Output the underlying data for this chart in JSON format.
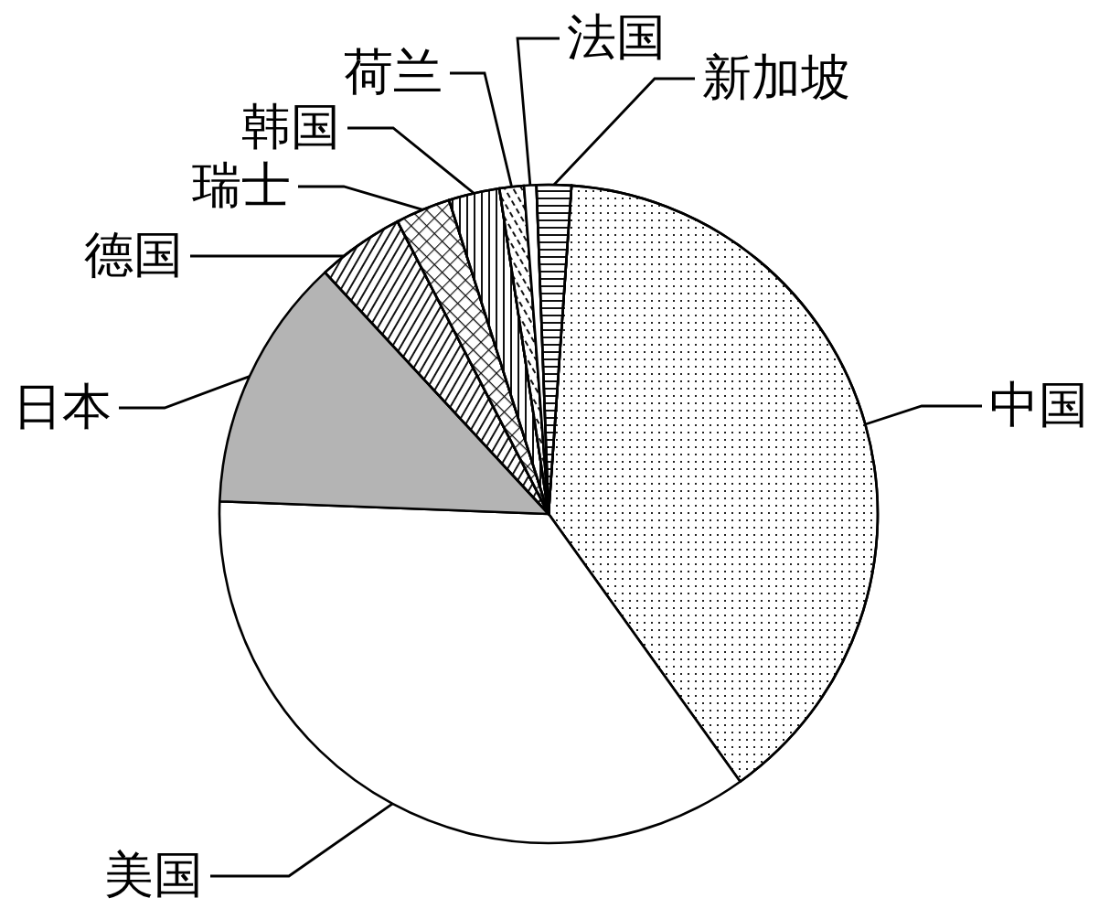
{
  "chart_data": {
    "type": "pie",
    "categories": [
      "中国",
      "美国",
      "日本",
      "德国",
      "瑞士",
      "韩国",
      "荷兰",
      "法国",
      "新加坡"
    ],
    "values": [
      39.0,
      35.5,
      12.5,
      4.3,
      2.7,
      2.5,
      1.2,
      0.6,
      1.7
    ],
    "colors": [
      "#ffffff",
      "#ffffff",
      "#b4b4b4",
      "#ffffff",
      "#ffffff",
      "#ffffff",
      "#ffffff",
      "#ffffff",
      "#ffffff"
    ]
  }
}
